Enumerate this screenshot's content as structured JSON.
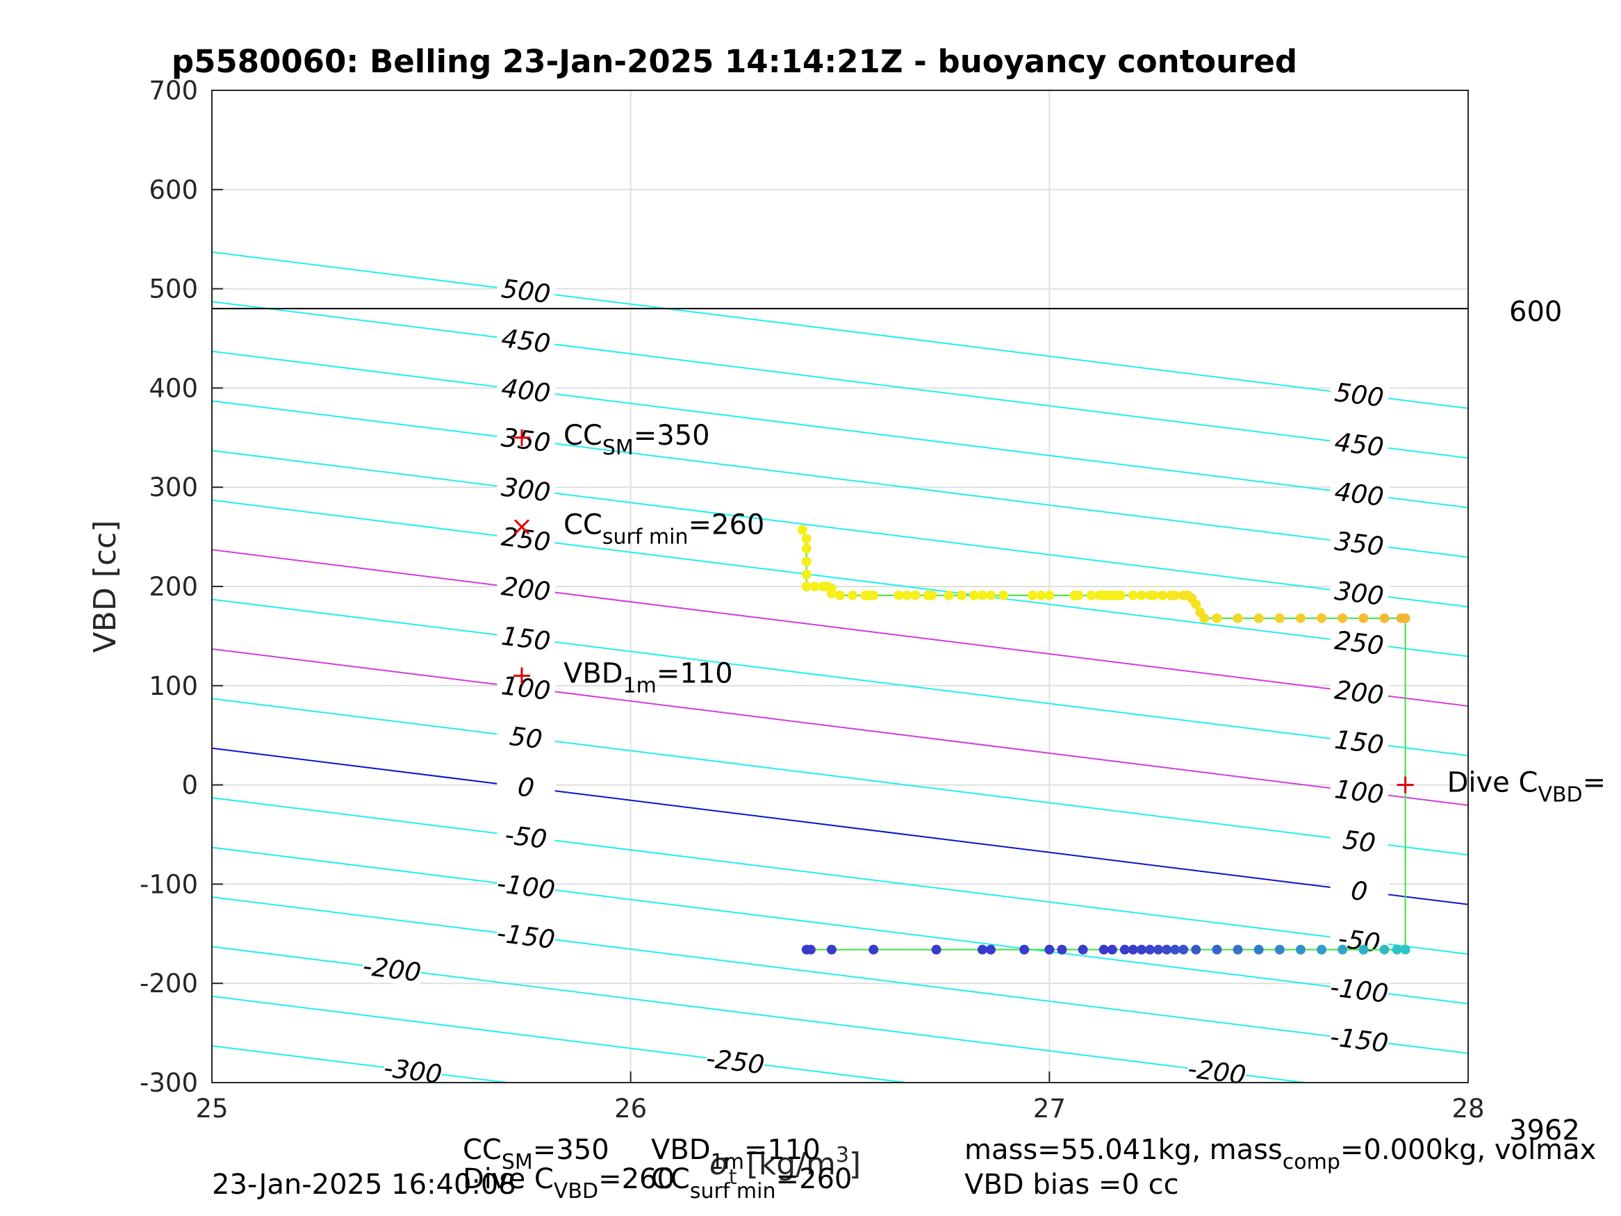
{
  "chart_data": {
    "type": "scatter",
    "title": "p5580060: Belling 23-Jan-2025 14:14:21Z - buoyancy contoured",
    "xlabel": "σ_t [kg/m^3]",
    "ylabel": "VBD [cc]",
    "xlim": [
      25,
      28
    ],
    "ylim": [
      -300,
      700
    ],
    "xticks": [
      "25",
      "26",
      "27",
      "28"
    ],
    "yticks": [
      "-300",
      "-200",
      "-100",
      "0",
      "100",
      "200",
      "300",
      "400",
      "500",
      "600",
      "700"
    ],
    "grid": true,
    "contours": {
      "slope_cc_per_sigma": -52.5,
      "levels": [
        -300,
        -250,
        -200,
        -150,
        -100,
        -50,
        0,
        50,
        100,
        150,
        200,
        250,
        300,
        350,
        400,
        450,
        500
      ],
      "value_at_x25_for_level0": 37,
      "highlight_blue_level": 0,
      "highlight_magenta_levels": [
        100,
        200
      ],
      "left_labels": [
        "500",
        "450",
        "400",
        "350",
        "300",
        "250",
        "200",
        "150",
        "100",
        "50",
        "0",
        "-50",
        "-100",
        "-150"
      ],
      "right_labels": [
        "500",
        "450",
        "400",
        "350",
        "300",
        "250",
        "200",
        "150",
        "100",
        "50",
        "0",
        "-50",
        "-100",
        "-150"
      ],
      "bottom_labels": [
        "-200",
        "-300",
        "-250",
        "-200"
      ]
    },
    "horizontal_line": {
      "y": 480,
      "label": "600"
    },
    "markers": {
      "cc_sm": {
        "x": 25.74,
        "y": 350,
        "label": "CC",
        "sub": "SM",
        "value_text": "=350",
        "symbol": "+"
      },
      "cc_surf_min": {
        "x": 25.74,
        "y": 260,
        "label": "CC",
        "sub": "surf min",
        "value_text": "=260",
        "symbol": "x"
      },
      "vbd_1m": {
        "x": 25.74,
        "y": 110,
        "label": "VBD",
        "sub": "1m",
        "value_text": "=110",
        "symbol": "+"
      },
      "dive_c_vbd": {
        "x": 27.85,
        "y": 0,
        "label": "Dive C",
        "sub": "VBD",
        "value_text": "=",
        "symbol": "+"
      }
    },
    "series": [
      {
        "color_from": "#f5ef1a",
        "color_to": "#f2b535",
        "points": [
          [
            26.41,
            257
          ],
          [
            26.42,
            248
          ],
          [
            26.42,
            238
          ],
          [
            26.42,
            225
          ],
          [
            26.42,
            212
          ],
          [
            26.42,
            200
          ],
          [
            26.44,
            200
          ],
          [
            26.46,
            200
          ],
          [
            26.47,
            200
          ],
          [
            26.48,
            198
          ],
          [
            26.48,
            193
          ],
          [
            26.5,
            191
          ],
          [
            26.53,
            191
          ],
          [
            26.56,
            191
          ],
          [
            26.57,
            191
          ],
          [
            26.58,
            191
          ],
          [
            26.64,
            191
          ],
          [
            26.66,
            191
          ],
          [
            26.68,
            191
          ],
          [
            26.71,
            191
          ],
          [
            26.72,
            191
          ],
          [
            26.76,
            191
          ],
          [
            26.79,
            191
          ],
          [
            26.82,
            191
          ],
          [
            26.84,
            191
          ],
          [
            26.86,
            191
          ],
          [
            26.89,
            191
          ],
          [
            26.96,
            191
          ],
          [
            26.98,
            191
          ],
          [
            27.0,
            191
          ],
          [
            27.06,
            191
          ],
          [
            27.07,
            191
          ],
          [
            27.1,
            191
          ],
          [
            27.12,
            191
          ],
          [
            27.13,
            191
          ],
          [
            27.14,
            191
          ],
          [
            27.15,
            191
          ],
          [
            27.16,
            191
          ],
          [
            27.17,
            191
          ],
          [
            27.2,
            191
          ],
          [
            27.22,
            191
          ],
          [
            27.24,
            191
          ],
          [
            27.25,
            191
          ],
          [
            27.27,
            191
          ],
          [
            27.29,
            191
          ],
          [
            27.3,
            191
          ],
          [
            27.32,
            191
          ],
          [
            27.33,
            191
          ],
          [
            27.34,
            188
          ],
          [
            27.35,
            182
          ],
          [
            27.36,
            174
          ],
          [
            27.37,
            168
          ],
          [
            27.4,
            168
          ],
          [
            27.45,
            168
          ],
          [
            27.5,
            168
          ],
          [
            27.55,
            168
          ],
          [
            27.6,
            168
          ],
          [
            27.65,
            168
          ],
          [
            27.7,
            168
          ],
          [
            27.75,
            168
          ],
          [
            27.8,
            168
          ],
          [
            27.84,
            168
          ],
          [
            27.85,
            168
          ]
        ]
      },
      {
        "color_from": "#3a3acc",
        "color_to": "#2ec6c6",
        "points": [
          [
            26.42,
            -166
          ],
          [
            26.43,
            -166
          ],
          [
            26.48,
            -166
          ],
          [
            26.58,
            -166
          ],
          [
            26.73,
            -166
          ],
          [
            26.84,
            -166
          ],
          [
            26.86,
            -166
          ],
          [
            26.94,
            -166
          ],
          [
            27.0,
            -166
          ],
          [
            27.03,
            -166
          ],
          [
            27.08,
            -166
          ],
          [
            27.13,
            -166
          ],
          [
            27.15,
            -166
          ],
          [
            27.18,
            -166
          ],
          [
            27.2,
            -166
          ],
          [
            27.22,
            -166
          ],
          [
            27.24,
            -166
          ],
          [
            27.26,
            -166
          ],
          [
            27.28,
            -166
          ],
          [
            27.3,
            -166
          ],
          [
            27.32,
            -166
          ],
          [
            27.35,
            -166
          ],
          [
            27.4,
            -166
          ],
          [
            27.45,
            -166
          ],
          [
            27.5,
            -166
          ],
          [
            27.55,
            -166
          ],
          [
            27.6,
            -166
          ],
          [
            27.65,
            -166
          ],
          [
            27.7,
            -166
          ],
          [
            27.75,
            -166
          ],
          [
            27.8,
            -166
          ],
          [
            27.83,
            -166
          ],
          [
            27.85,
            -166
          ]
        ]
      }
    ],
    "connector": {
      "x": 27.85,
      "y_from": 168,
      "y_to": -166
    },
    "right_side_text": {
      "top": "600",
      "bottom": "3962"
    },
    "footer": {
      "timestamp": "23-Jan-2025 16:40:08",
      "line1_a": "CC",
      "line1_a_sub": "SM",
      "line1_b": "=350",
      "line1_c": "VBD",
      "line1_c_sub": "1m",
      "line1_d": "=110",
      "line2_a": "Dive C",
      "line2_a_sub": "VBD",
      "line2_b": "=260",
      "line2_c": "CC",
      "line2_c_sub": "surf min",
      "line2_d": "=260",
      "mass_text": "mass=55.041kg, mass",
      "mass_sub": "comp",
      "mass_rest": "=0.000kg, volmax",
      "bias_text": "VBD bias =0 cc"
    }
  }
}
